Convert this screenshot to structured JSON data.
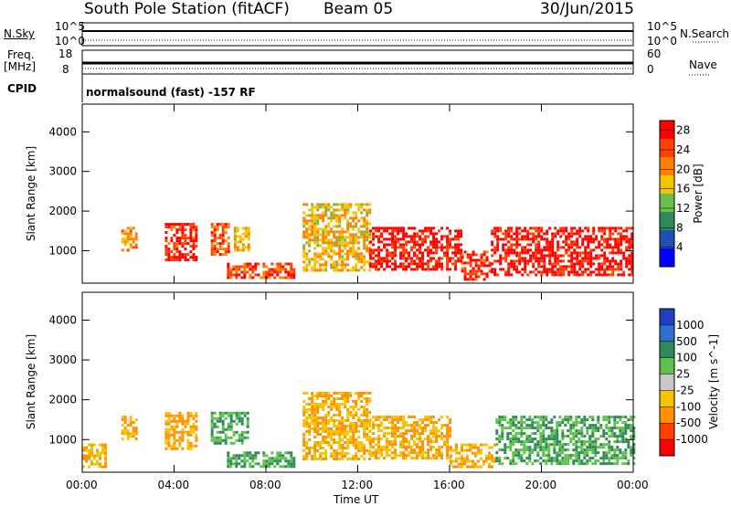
{
  "header": {
    "station": "South Pole Station (fitACF)",
    "beam": "Beam 05",
    "date": "30/Jun/2015"
  },
  "summary_panels": {
    "nsky_label": "N.Sky",
    "nsearch_label": "N.Search",
    "noise_ticks": [
      "10^5",
      "10^0"
    ],
    "freq_label": "Freq.",
    "freq_unit": "[MHz]",
    "freq_ticks": [
      "18",
      "8"
    ],
    "nave_ticks": [
      "60",
      "0"
    ],
    "nave_label": "Nave",
    "cpid_label": "CPID",
    "cpid_text": "normalsound (fast) -157 RF"
  },
  "chart_data": [
    {
      "type": "heatmap",
      "title": "",
      "xlabel": "Time UT",
      "ylabel": "Slant Range [km]",
      "x_ticks": [
        "00:00",
        "04:00",
        "08:00",
        "12:00",
        "16:00",
        "20:00",
        "00:00"
      ],
      "xlim_hours": [
        0,
        24
      ],
      "y_ticks": [
        1000,
        2000,
        3000,
        4000
      ],
      "ylim": [
        180,
        4700
      ],
      "colorbar": {
        "label": "Power [dB]",
        "ticks": [
          4,
          8,
          12,
          16,
          20,
          24,
          28
        ],
        "range": [
          0,
          30
        ],
        "colors": [
          "#0000ff",
          "#1f4fb0",
          "#2e8b57",
          "#6abf4b",
          "#f5c400",
          "#ff8000",
          "#ff4000",
          "#ff0000"
        ]
      },
      "echo_regions": [
        {
          "t0": 1.7,
          "t1": 2.4,
          "r0": 1000,
          "r1": 1600,
          "value": 20
        },
        {
          "t0": 3.6,
          "t1": 5.0,
          "r0": 800,
          "r1": 1700,
          "value": 26
        },
        {
          "t0": 5.6,
          "t1": 6.4,
          "r0": 900,
          "r1": 1700,
          "value": 24
        },
        {
          "t0": 6.6,
          "t1": 7.2,
          "r0": 1000,
          "r1": 1600,
          "value": 18
        },
        {
          "t0": 6.3,
          "t1": 9.2,
          "r0": 300,
          "r1": 700,
          "value": 24
        },
        {
          "t0": 9.6,
          "t1": 12.5,
          "r0": 500,
          "r1": 2200,
          "value": 18
        },
        {
          "t0": 12.5,
          "t1": 16.5,
          "r0": 500,
          "r1": 1600,
          "value": 28
        },
        {
          "t0": 16.5,
          "t1": 17.8,
          "r0": 300,
          "r1": 1000,
          "value": 26
        },
        {
          "t0": 17.8,
          "t1": 24.0,
          "r0": 400,
          "r1": 1600,
          "value": 28
        }
      ]
    },
    {
      "type": "heatmap",
      "title": "",
      "xlabel": "Time UT",
      "ylabel": "Slant Range [km]",
      "x_ticks": [
        "00:00",
        "04:00",
        "08:00",
        "12:00",
        "16:00",
        "20:00",
        "00:00"
      ],
      "xlim_hours": [
        0,
        24
      ],
      "y_ticks": [
        1000,
        2000,
        3000,
        4000
      ],
      "ylim": [
        180,
        4700
      ],
      "colorbar": {
        "label": "Velocity [m s^-1]",
        "ticks": [
          "1000",
          "500",
          "100",
          "25",
          "-25",
          "-100",
          "-500",
          "-1000"
        ],
        "colors": [
          "#1e40c8",
          "#2e6fd0",
          "#2e8b57",
          "#5ec24a",
          "#c8c8c8",
          "#f5c400",
          "#ff9000",
          "#ff4000",
          "#ff0000"
        ]
      },
      "echo_regions": [
        {
          "t0": 0.0,
          "t1": 1.0,
          "r0": 300,
          "r1": 900,
          "value": -100
        },
        {
          "t0": 1.7,
          "t1": 2.4,
          "r0": 1000,
          "r1": 1600,
          "value": -100
        },
        {
          "t0": 3.6,
          "t1": 5.0,
          "r0": 800,
          "r1": 1700,
          "value": -100
        },
        {
          "t0": 5.6,
          "t1": 7.2,
          "r0": 900,
          "r1": 1700,
          "value": 100
        },
        {
          "t0": 6.3,
          "t1": 9.2,
          "r0": 300,
          "r1": 700,
          "value": 100
        },
        {
          "t0": 9.6,
          "t1": 12.5,
          "r0": 500,
          "r1": 2200,
          "value": -100
        },
        {
          "t0": 12.5,
          "t1": 16.0,
          "r0": 500,
          "r1": 1600,
          "value": -100
        },
        {
          "t0": 16.0,
          "t1": 18.0,
          "r0": 300,
          "r1": 900,
          "value": -100
        },
        {
          "t0": 18.0,
          "t1": 24.0,
          "r0": 400,
          "r1": 1600,
          "value": 100
        }
      ]
    }
  ]
}
